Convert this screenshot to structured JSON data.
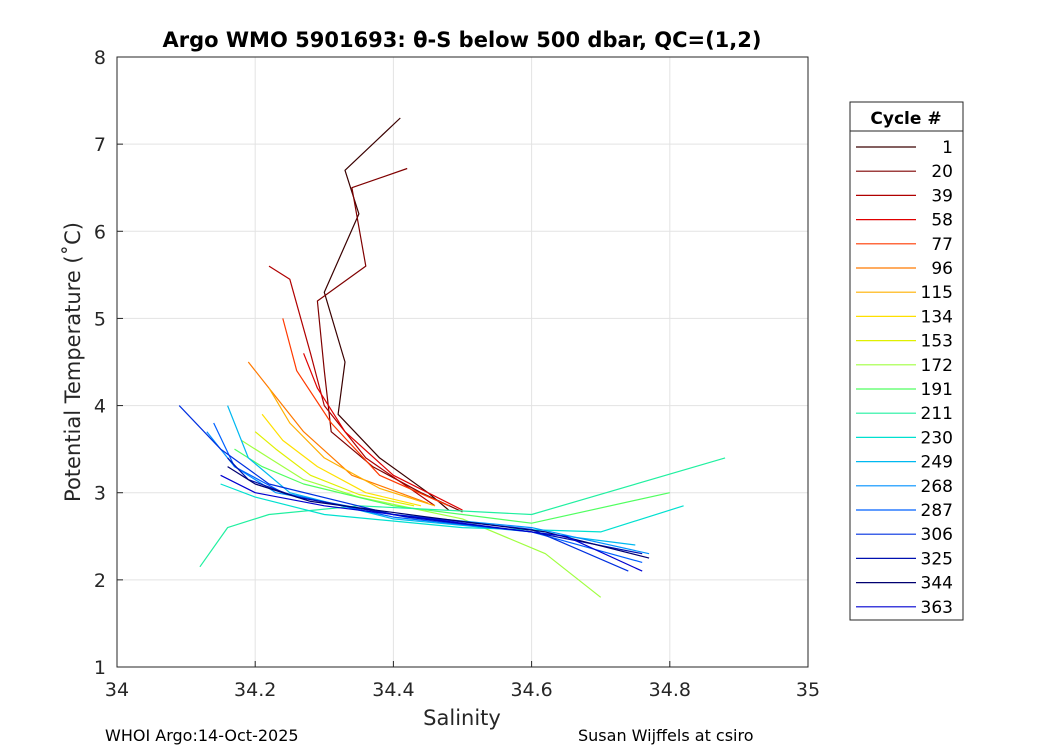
{
  "chart_data": {
    "type": "line",
    "title": "Argo WMO 5901693: θ-S below 500 dbar,  QC=(1,2)",
    "xlabel": "Salinity",
    "ylabel": "Potential Temperature (˚C)",
    "xlim": [
      34,
      35
    ],
    "ylim": [
      1,
      8
    ],
    "xticks": [
      "34",
      "34.2",
      "34.4",
      "34.6",
      "34.8",
      "35"
    ],
    "yticks": [
      "1",
      "2",
      "3",
      "4",
      "5",
      "6",
      "7",
      "8"
    ],
    "grid": true,
    "legend": {
      "title": "Cycle #",
      "placement": "outside-right",
      "entries": [
        {
          "label": "1",
          "color": "#3a0000"
        },
        {
          "label": "20",
          "color": "#7f0000"
        },
        {
          "label": "39",
          "color": "#b00000"
        },
        {
          "label": "58",
          "color": "#e00000"
        },
        {
          "label": "77",
          "color": "#ff3a00"
        },
        {
          "label": "96",
          "color": "#ff7a00"
        },
        {
          "label": "115",
          "color": "#ffb000"
        },
        {
          "label": "134",
          "color": "#ffe000"
        },
        {
          "label": "153",
          "color": "#e0f000"
        },
        {
          "label": "172",
          "color": "#a0ff40"
        },
        {
          "label": "191",
          "color": "#50ff60"
        },
        {
          "label": "211",
          "color": "#20f0a0"
        },
        {
          "label": "230",
          "color": "#00e0d0"
        },
        {
          "label": "249",
          "color": "#00b8f0"
        },
        {
          "label": "268",
          "color": "#0090ff"
        },
        {
          "label": "287",
          "color": "#0060ff"
        },
        {
          "label": "306",
          "color": "#0030e0"
        },
        {
          "label": "325",
          "color": "#0010b0"
        },
        {
          "label": "344",
          "color": "#000070"
        },
        {
          "label": "363",
          "color": "#0000d0"
        }
      ]
    },
    "series": [
      {
        "name": "1",
        "color": "#3a0000",
        "x": [
          34.41,
          34.33,
          34.35,
          34.3,
          34.33,
          34.32,
          34.38,
          34.45,
          34.48
        ],
        "y": [
          7.3,
          6.7,
          6.2,
          5.3,
          4.5,
          3.9,
          3.4,
          3.0,
          2.8
        ]
      },
      {
        "name": "20",
        "color": "#7f0000",
        "x": [
          34.42,
          34.34,
          34.36,
          34.29,
          34.3,
          34.31,
          34.37,
          34.44,
          34.5
        ],
        "y": [
          6.72,
          6.5,
          5.6,
          5.2,
          4.4,
          3.7,
          3.3,
          3.0,
          2.78
        ]
      },
      {
        "name": "39",
        "color": "#b00000",
        "x": [
          34.22,
          34.25,
          34.28,
          34.3,
          34.36,
          34.46
        ],
        "y": [
          5.6,
          5.45,
          4.6,
          4.0,
          3.4,
          2.85
        ]
      },
      {
        "name": "58",
        "color": "#e00000",
        "x": [
          34.27,
          34.29,
          34.33,
          34.4,
          34.5
        ],
        "y": [
          4.6,
          4.2,
          3.7,
          3.2,
          2.8
        ]
      },
      {
        "name": "77",
        "color": "#ff3a00",
        "x": [
          34.24,
          34.26,
          34.31,
          34.38,
          34.48
        ],
        "y": [
          5.0,
          4.4,
          3.8,
          3.2,
          2.85
        ]
      },
      {
        "name": "96",
        "color": "#ff7a00",
        "x": [
          34.19,
          34.23,
          34.27,
          34.34,
          34.45
        ],
        "y": [
          4.5,
          4.1,
          3.7,
          3.2,
          2.88
        ]
      },
      {
        "name": "115",
        "color": "#ffb000",
        "x": [
          34.22,
          34.25,
          34.3,
          34.38,
          34.46
        ],
        "y": [
          4.2,
          3.8,
          3.4,
          3.05,
          2.85
        ]
      },
      {
        "name": "134",
        "color": "#ffe000",
        "x": [
          34.21,
          34.24,
          34.29,
          34.36,
          34.44
        ],
        "y": [
          3.9,
          3.6,
          3.3,
          3.0,
          2.85
        ]
      },
      {
        "name": "153",
        "color": "#e0f000",
        "x": [
          34.2,
          34.23,
          34.28,
          34.35,
          34.43
        ],
        "y": [
          3.7,
          3.5,
          3.2,
          2.98,
          2.85
        ]
      },
      {
        "name": "172",
        "color": "#a0ff40",
        "x": [
          34.18,
          34.22,
          34.27,
          34.35,
          34.5,
          34.62,
          34.7
        ],
        "y": [
          3.6,
          3.4,
          3.15,
          2.95,
          2.7,
          2.3,
          1.8
        ]
      },
      {
        "name": "191",
        "color": "#50ff60",
        "x": [
          34.17,
          34.21,
          34.27,
          34.4,
          34.6,
          34.8
        ],
        "y": [
          3.5,
          3.3,
          3.1,
          2.85,
          2.65,
          3.0
        ]
      },
      {
        "name": "211",
        "color": "#20f0a0",
        "x": [
          34.12,
          34.16,
          34.22,
          34.35,
          34.6,
          34.88
        ],
        "y": [
          2.15,
          2.6,
          2.75,
          2.85,
          2.75,
          3.4
        ]
      },
      {
        "name": "230",
        "color": "#00e0d0",
        "x": [
          34.15,
          34.2,
          34.3,
          34.5,
          34.7,
          34.82
        ],
        "y": [
          3.1,
          2.95,
          2.75,
          2.6,
          2.55,
          2.85
        ]
      },
      {
        "name": "249",
        "color": "#00b8f0",
        "x": [
          34.16,
          34.19,
          34.25,
          34.4,
          34.6,
          34.75
        ],
        "y": [
          4.0,
          3.4,
          3.0,
          2.7,
          2.55,
          2.4
        ]
      },
      {
        "name": "268",
        "color": "#0090ff",
        "x": [
          34.13,
          34.17,
          34.23,
          34.4,
          34.6,
          34.77
        ],
        "y": [
          3.7,
          3.3,
          3.0,
          2.75,
          2.6,
          2.3
        ]
      },
      {
        "name": "287",
        "color": "#0060ff",
        "x": [
          34.14,
          34.17,
          34.24,
          34.4,
          34.6,
          34.76
        ],
        "y": [
          3.8,
          3.3,
          3.0,
          2.72,
          2.55,
          2.2
        ]
      },
      {
        "name": "306",
        "color": "#0030e0",
        "x": [
          34.09,
          34.15,
          34.22,
          34.4,
          34.6,
          34.74
        ],
        "y": [
          4.0,
          3.5,
          3.1,
          2.75,
          2.58,
          2.1
        ]
      },
      {
        "name": "325",
        "color": "#0010b0",
        "x": [
          34.16,
          34.19,
          34.26,
          34.42,
          34.6,
          34.76
        ],
        "y": [
          3.4,
          3.15,
          2.95,
          2.72,
          2.55,
          2.3
        ]
      },
      {
        "name": "344",
        "color": "#000070",
        "x": [
          34.16,
          34.2,
          34.28,
          34.45,
          34.62,
          34.77
        ],
        "y": [
          3.3,
          3.1,
          2.9,
          2.72,
          2.55,
          2.25
        ]
      },
      {
        "name": "363",
        "color": "#0000d0",
        "x": [
          34.15,
          34.2,
          34.3,
          34.5,
          34.65,
          34.76
        ],
        "y": [
          3.2,
          3.0,
          2.85,
          2.65,
          2.5,
          2.1
        ]
      }
    ]
  },
  "footer": {
    "left": "WHOI Argo:14-Oct-2025",
    "right": "Susan Wijffels at csiro"
  }
}
